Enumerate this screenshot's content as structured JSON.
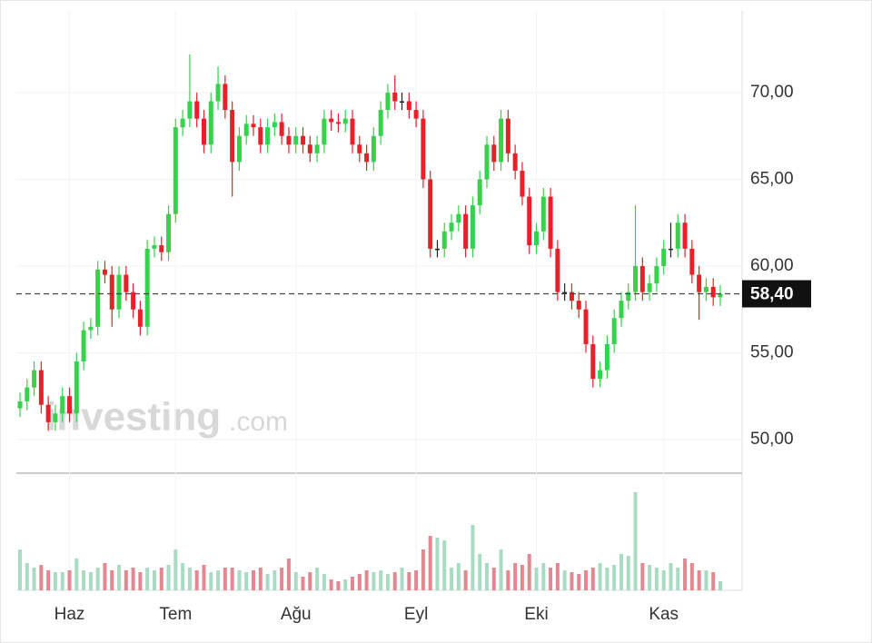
{
  "chart_data": {
    "type": "candlestick",
    "categories": [
      null,
      null,
      null,
      null,
      null,
      null,
      null,
      "Haz",
      null,
      null,
      null,
      null,
      null,
      null,
      null,
      null,
      null,
      null,
      null,
      null,
      null,
      null,
      "Tem",
      null,
      null,
      null,
      null,
      null,
      null,
      null,
      null,
      null,
      null,
      null,
      null,
      null,
      null,
      null,
      null,
      "Ağu",
      null,
      null,
      null,
      null,
      null,
      null,
      null,
      null,
      null,
      null,
      null,
      null,
      null,
      null,
      null,
      null,
      "Eyl",
      null,
      null,
      null,
      null,
      null,
      null,
      null,
      null,
      null,
      null,
      null,
      null,
      null,
      null,
      null,
      null,
      "Eki",
      null,
      null,
      null,
      null,
      null,
      null,
      null,
      null,
      null,
      null,
      null,
      null,
      null,
      null,
      null,
      null,
      null,
      "Kas",
      null,
      null,
      null,
      null,
      null,
      null,
      null,
      null
    ],
    "open": [
      51.8,
      52.2,
      53.0,
      54.0,
      52.0,
      51.0,
      51.5,
      52.5,
      51.5,
      54.5,
      56.3,
      56.5,
      59.8,
      59.5,
      57.5,
      59.5,
      58.5,
      57.5,
      56.5,
      61.0,
      61.2,
      60.8,
      63.0,
      68.0,
      68.5,
      69.5,
      68.5,
      67.0,
      69.5,
      70.5,
      69.0,
      66.0,
      67.5,
      68.2,
      68.0,
      67.0,
      68.0,
      68.3,
      67.5,
      67.0,
      67.5,
      67.0,
      66.5,
      67.0,
      68.5,
      68.3,
      68.2,
      68.5,
      67.0,
      66.5,
      66.0,
      67.5,
      69.0,
      70.0,
      69.5,
      69.5,
      69.0,
      68.5,
      65.0,
      61.0,
      61.0,
      62.0,
      62.5,
      63.0,
      61.0,
      63.5,
      65.0,
      67.0,
      66.0,
      68.5,
      66.5,
      65.5,
      64.0,
      61.2,
      62.0,
      64.0,
      61.0,
      58.5,
      58.5,
      58.0,
      57.5,
      55.5,
      53.5,
      54.0,
      55.5,
      57.0,
      58.0,
      58.5,
      60.0,
      58.5,
      59.0,
      60.0,
      61.0,
      61.0,
      62.5,
      61.0,
      59.5,
      58.5,
      58.8,
      58.2
    ],
    "high": [
      52.7,
      53.5,
      54.5,
      54.5,
      52.5,
      52,
      53,
      53,
      55,
      56.8,
      57,
      60.3,
      60.3,
      60,
      60,
      60,
      59,
      58,
      61.5,
      61.7,
      61.7,
      63.5,
      68.5,
      69,
      72.2,
      70,
      69,
      70,
      71.5,
      71,
      69.5,
      68,
      68.7,
      68.7,
      68.5,
      68.5,
      68.8,
      68.8,
      68,
      68,
      68,
      67.5,
      67.5,
      69,
      69,
      68.8,
      69,
      69,
      67.5,
      67,
      68,
      69.5,
      70.5,
      71,
      70,
      70,
      69.5,
      69,
      65.5,
      61.5,
      62.5,
      63,
      63.5,
      63.5,
      64,
      65.5,
      67.5,
      67.5,
      69,
      69,
      67,
      66,
      64.5,
      62.5,
      64.5,
      64.5,
      61.5,
      59,
      59,
      58.5,
      58,
      56,
      54.5,
      56,
      57.5,
      58.5,
      59,
      63.5,
      60.5,
      59.5,
      60.5,
      61.5,
      62.5,
      63,
      63,
      61.5,
      60,
      59.3,
      59.3,
      58.9
    ],
    "low": [
      51.3,
      51.7,
      52.5,
      51.5,
      50.5,
      50.5,
      51,
      51,
      51,
      54,
      55.8,
      56,
      59,
      56.5,
      57,
      58,
      57,
      56,
      56,
      60.5,
      60.3,
      60.3,
      62.5,
      67.5,
      68,
      68,
      66.5,
      66.5,
      69,
      68.5,
      64,
      65.5,
      67,
      67.5,
      66.5,
      66.5,
      67.5,
      67,
      66.5,
      66.5,
      66.5,
      66,
      66,
      66.5,
      67.8,
      67.7,
      67.7,
      66.5,
      66,
      65.5,
      65.5,
      67,
      68.5,
      69,
      69,
      68.5,
      68,
      64.5,
      60.5,
      60.5,
      60.5,
      61.5,
      62,
      60.5,
      60.5,
      63,
      64.5,
      65.5,
      65.5,
      66,
      65,
      63.5,
      60.7,
      60.7,
      61.5,
      60.5,
      58,
      58,
      57.5,
      57,
      55,
      53,
      53,
      53.5,
      55,
      56.5,
      57.5,
      58,
      58,
      58,
      58.5,
      59.5,
      60.5,
      60.5,
      60.5,
      59,
      56.9,
      58,
      57.7,
      57.7
    ],
    "close": [
      52.2,
      53.0,
      54.0,
      52.0,
      51.0,
      51.5,
      52.5,
      51.5,
      54.5,
      56.3,
      56.5,
      59.8,
      59.5,
      57.5,
      59.5,
      58.5,
      57.5,
      56.5,
      61.0,
      61.2,
      60.8,
      63.0,
      68.0,
      68.5,
      69.5,
      68.5,
      67.0,
      69.5,
      70.5,
      69.0,
      66.0,
      67.5,
      68.2,
      68.0,
      67.0,
      68.0,
      68.3,
      67.5,
      67.0,
      67.5,
      67.0,
      66.5,
      67.0,
      68.5,
      68.3,
      68.2,
      68.5,
      67.0,
      66.5,
      66.0,
      67.5,
      69.0,
      70.0,
      69.5,
      69.5,
      69.0,
      68.5,
      65.0,
      61.0,
      61.0,
      62.0,
      62.5,
      63.0,
      61.0,
      63.5,
      65.0,
      67.0,
      66.0,
      68.5,
      66.5,
      65.5,
      64.0,
      61.2,
      62.0,
      64.0,
      61.0,
      58.5,
      58.5,
      58.0,
      57.5,
      55.5,
      53.5,
      54.0,
      55.5,
      57.0,
      58.0,
      58.5,
      60.0,
      58.5,
      59.0,
      60.0,
      61.0,
      61.0,
      62.5,
      61.0,
      59.5,
      58.5,
      58.8,
      58.2,
      58.4
    ],
    "volume": [
      45,
      30,
      25,
      28,
      22,
      20,
      20,
      22,
      35,
      22,
      20,
      25,
      30,
      22,
      28,
      22,
      25,
      20,
      25,
      22,
      25,
      28,
      45,
      30,
      25,
      22,
      28,
      20,
      22,
      25,
      25,
      22,
      20,
      22,
      25,
      18,
      22,
      25,
      35,
      20,
      15,
      20,
      25,
      18,
      12,
      10,
      12,
      15,
      18,
      22,
      20,
      22,
      18,
      20,
      25,
      20,
      22,
      45,
      60,
      58,
      55,
      25,
      30,
      22,
      72,
      40,
      30,
      25,
      45,
      22,
      30,
      28,
      40,
      25,
      30,
      25,
      30,
      22,
      20,
      18,
      22,
      25,
      30,
      25,
      28,
      40,
      38,
      108,
      30,
      28,
      25,
      22,
      30,
      25,
      35,
      30,
      22,
      22,
      20,
      10
    ],
    "ylim": [
      48.06,
      74.71
    ],
    "yticks": [
      {
        "value": 50,
        "label": "50,00"
      },
      {
        "value": 55,
        "label": "55,00"
      },
      {
        "value": 60,
        "label": "60,00"
      },
      {
        "value": 65,
        "label": "65,00"
      },
      {
        "value": 70,
        "label": "70,00"
      }
    ],
    "volume_lim": [
      0,
      129
    ],
    "last_price": {
      "value": 58.4,
      "label": "58,40"
    },
    "grid": true,
    "up_color": "#36d24c",
    "down_color": "#e8202a",
    "doji_color": "#222222",
    "volume_up_color": "#a8dcc2",
    "volume_down_color": "#e38791",
    "watermark": "investing",
    "watermark_suffix": ".com"
  }
}
